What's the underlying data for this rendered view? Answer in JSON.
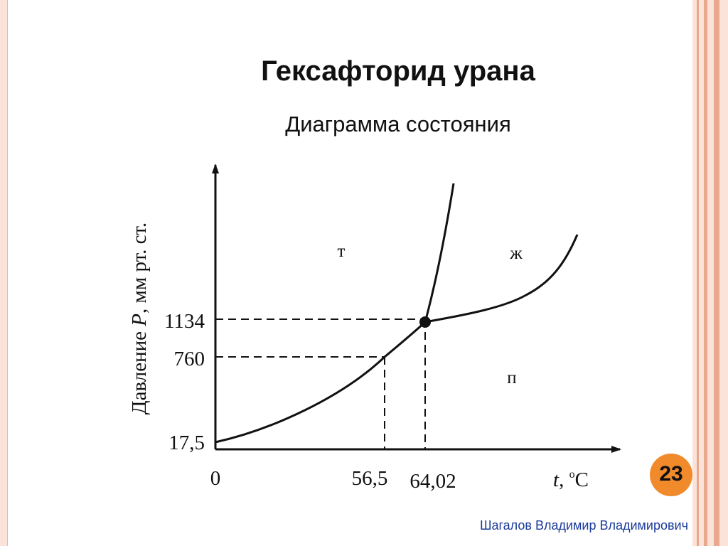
{
  "slide": {
    "title": "Гексафторид урана",
    "subtitle": "Диаграмма состояния",
    "page_number": "23",
    "author": "Шагалов Владимир Владимирович"
  },
  "diagram": {
    "y_axis": {
      "label_main": "Давление ",
      "label_var": "P",
      "label_unit": ", мм рт. ст."
    },
    "x_axis": {
      "label_var": "t",
      "label_sep": ", ",
      "label_sup": "o",
      "label_unit": "C"
    },
    "y_ticks": [
      "1134",
      "760",
      "17,5"
    ],
    "x_ticks": [
      "0",
      "56,5",
      "64,02"
    ],
    "regions": {
      "solid": "т",
      "liquid": "ж",
      "vapor": "п"
    }
  },
  "colors": {
    "accent": "#f08a2a",
    "frame": "#fbe3da",
    "stripe": "#e8a98f",
    "author": "#1a3a9a"
  }
}
